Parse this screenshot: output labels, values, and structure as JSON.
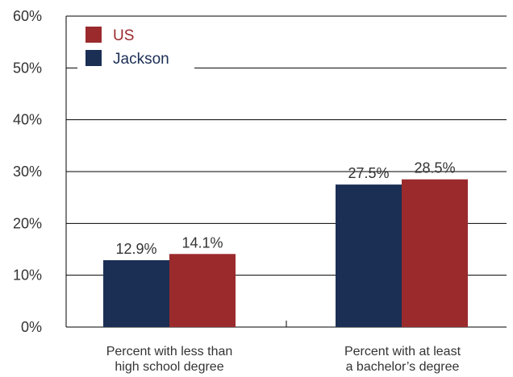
{
  "colors": {
    "us": "#9b2a2d",
    "jackson": "#1b2f55",
    "grid": "#000000",
    "text": "#333333"
  },
  "chart_data": {
    "type": "bar",
    "categories": [
      [
        "Percent with less than",
        "high school degree"
      ],
      [
        "Percent with at least",
        "a bachelor’s degree"
      ]
    ],
    "series": [
      {
        "name": "Jackson",
        "color_key": "jackson",
        "values": [
          12.9,
          27.5
        ],
        "labels": [
          "12.9%",
          "27.5%"
        ]
      },
      {
        "name": "US",
        "color_key": "us",
        "values": [
          14.1,
          28.5
        ],
        "labels": [
          "14.1%",
          "28.5%"
        ]
      }
    ],
    "legend_order": [
      "US",
      "Jackson"
    ],
    "legend_position": "top-left",
    "ylim": [
      0,
      60
    ],
    "yticks": [
      "0%",
      "10%",
      "20%",
      "30%",
      "40%",
      "50%",
      "60%"
    ],
    "grid": true
  }
}
